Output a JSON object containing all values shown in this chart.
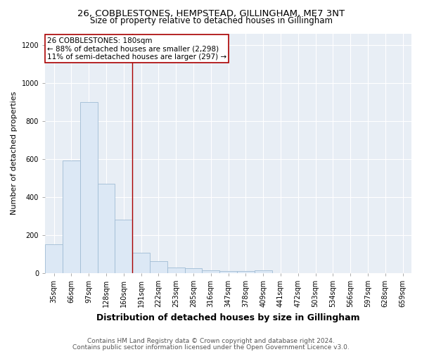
{
  "title1": "26, COBBLESTONES, HEMPSTEAD, GILLINGHAM, ME7 3NT",
  "title2": "Size of property relative to detached houses in Gillingham",
  "xlabel": "Distribution of detached houses by size in Gillingham",
  "ylabel": "Number of detached properties",
  "categories": [
    "35sqm",
    "66sqm",
    "97sqm",
    "128sqm",
    "160sqm",
    "191sqm",
    "222sqm",
    "253sqm",
    "285sqm",
    "316sqm",
    "347sqm",
    "378sqm",
    "409sqm",
    "441sqm",
    "472sqm",
    "503sqm",
    "534sqm",
    "566sqm",
    "597sqm",
    "628sqm",
    "659sqm"
  ],
  "values": [
    150,
    590,
    900,
    470,
    280,
    105,
    62,
    28,
    25,
    15,
    10,
    8,
    12,
    0,
    0,
    0,
    0,
    0,
    0,
    0,
    0
  ],
  "bar_color": "#dce8f5",
  "bar_edge_color": "#a0bcd4",
  "vline_x": 4.5,
  "vline_color": "#aa0000",
  "annotation_text": "26 COBBLESTONES: 180sqm\n← 88% of detached houses are smaller (2,298)\n11% of semi-detached houses are larger (297) →",
  "annotation_box_color": "#ffffff",
  "annotation_box_edge": "#aa0000",
  "ylim": [
    0,
    1260
  ],
  "yticks": [
    0,
    200,
    400,
    600,
    800,
    1000,
    1200
  ],
  "footer1": "Contains HM Land Registry data © Crown copyright and database right 2024.",
  "footer2": "Contains public sector information licensed under the Open Government Licence v3.0.",
  "bg_color": "#ffffff",
  "plot_bg_color": "#e8eef5",
  "title1_fontsize": 9.5,
  "title2_fontsize": 8.5,
  "xlabel_fontsize": 9,
  "ylabel_fontsize": 8,
  "tick_fontsize": 7,
  "footer_fontsize": 6.5,
  "annotation_fontsize": 7.5
}
